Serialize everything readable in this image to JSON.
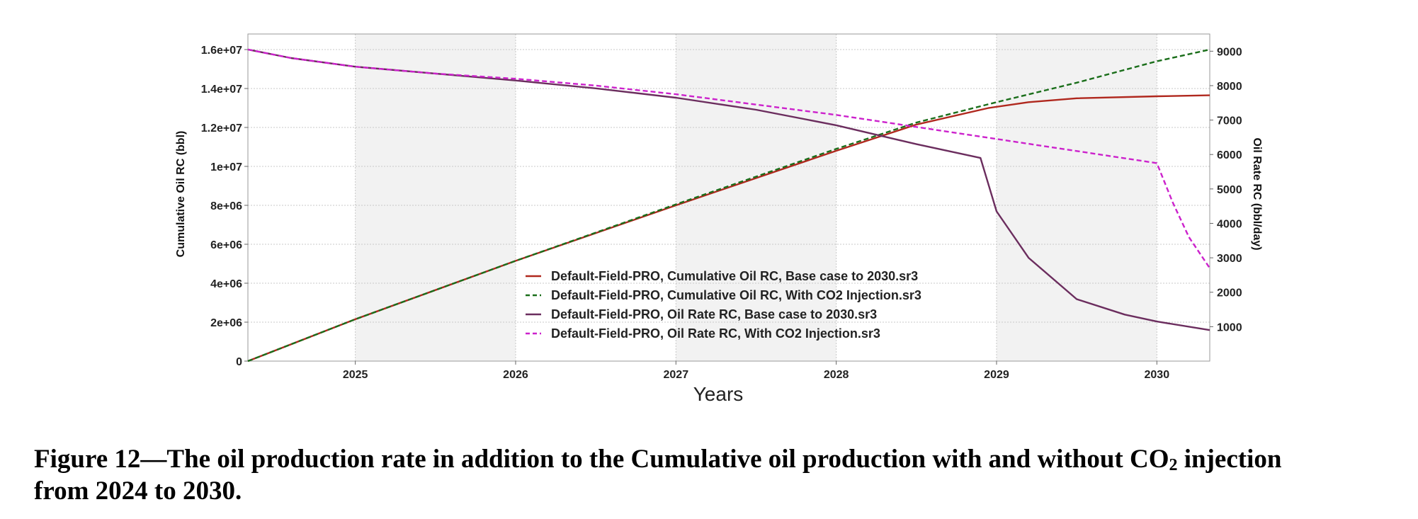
{
  "chart_data": {
    "type": "line",
    "title": "",
    "xlabel": "Years",
    "ylabel_left": "Cumulative Oil RC (bbl)",
    "ylabel_right": "Oil Rate RC (bbl/day)",
    "xlim": [
      2024.33,
      2030.33
    ],
    "ylim_left": [
      0,
      16800000
    ],
    "ylim_right": [
      0,
      9500
    ],
    "x_ticks": [
      2025,
      2026,
      2027,
      2028,
      2029,
      2030
    ],
    "x_tick_labels": [
      "2025",
      "2026",
      "2027",
      "2028",
      "2029",
      "2030"
    ],
    "y_left_ticks": [
      0,
      2000000,
      4000000,
      6000000,
      8000000,
      10000000,
      12000000,
      14000000,
      16000000
    ],
    "y_left_tick_labels": [
      "0",
      "2e+06",
      "4e+06",
      "6e+06",
      "8e+06",
      "1e+07",
      "1.2e+07",
      "1.4e+07",
      "1.6e+07"
    ],
    "y_right_ticks": [
      1000,
      2000,
      3000,
      4000,
      5000,
      6000,
      7000,
      8000,
      9000
    ],
    "y_right_tick_labels": [
      "1000",
      "2000",
      "3000",
      "4000",
      "5000",
      "6000",
      "7000",
      "8000",
      "9000"
    ],
    "grid": true,
    "legend_position": "bottom-center",
    "series": [
      {
        "name": "Default-Field-PRO, Cumulative Oil RC, Base case to 2030.sr3",
        "axis": "left",
        "color": "#b0281e",
        "dash": "solid",
        "x": [
          2024.33,
          2025,
          2026,
          2027,
          2028,
          2028.5,
          2028.95,
          2029.2,
          2029.5,
          2030,
          2030.33
        ],
        "y": [
          0,
          2150000,
          5150000,
          8000000,
          10800000,
          12150000,
          13000000,
          13300000,
          13500000,
          13600000,
          13650000
        ]
      },
      {
        "name": "Default-Field-PRO, Cumulative Oil RC, With CO2 Injection.sr3",
        "axis": "left",
        "color": "#1a6e1a",
        "dash": "dashed",
        "x": [
          2024.33,
          2025,
          2026,
          2027,
          2028,
          2028.5,
          2029,
          2029.5,
          2030,
          2030.33
        ],
        "y": [
          0,
          2150000,
          5150000,
          8050000,
          10900000,
          12250000,
          13300000,
          14300000,
          15400000,
          16000000
        ]
      },
      {
        "name": "Default-Field-PRO, Oil Rate RC, Base case to 2030.sr3",
        "axis": "right",
        "color": "#6b2d5e",
        "dash": "solid",
        "x": [
          2024.33,
          2024.6,
          2025,
          2025.5,
          2026,
          2026.5,
          2027,
          2027.5,
          2028,
          2028.5,
          2028.9,
          2029,
          2029.2,
          2029.5,
          2029.8,
          2030,
          2030.33
        ],
        "y": [
          9050,
          8800,
          8550,
          8350,
          8150,
          7920,
          7650,
          7300,
          6850,
          6300,
          5900,
          4350,
          3000,
          1800,
          1350,
          1150,
          900
        ]
      },
      {
        "name": "Default-Field-PRO, Oil Rate RC, With CO2 Injection.sr3",
        "axis": "right",
        "color": "#cc22cc",
        "dash": "dashed",
        "x": [
          2024.33,
          2024.6,
          2025,
          2025.5,
          2026,
          2026.5,
          2027,
          2027.5,
          2028,
          2028.5,
          2029,
          2029.5,
          2030,
          2030.1,
          2030.2,
          2030.33
        ],
        "y": [
          9050,
          8800,
          8550,
          8350,
          8200,
          8000,
          7750,
          7450,
          7150,
          6800,
          6450,
          6100,
          5750,
          4600,
          3600,
          2700
        ]
      }
    ]
  },
  "caption": {
    "line1_before": "Figure 12—The oil production rate in addition to the Cumulative oil production with and without CO",
    "line1_sub": "2",
    "line1_after": " injection",
    "line2": "from 2024 to 2030."
  }
}
